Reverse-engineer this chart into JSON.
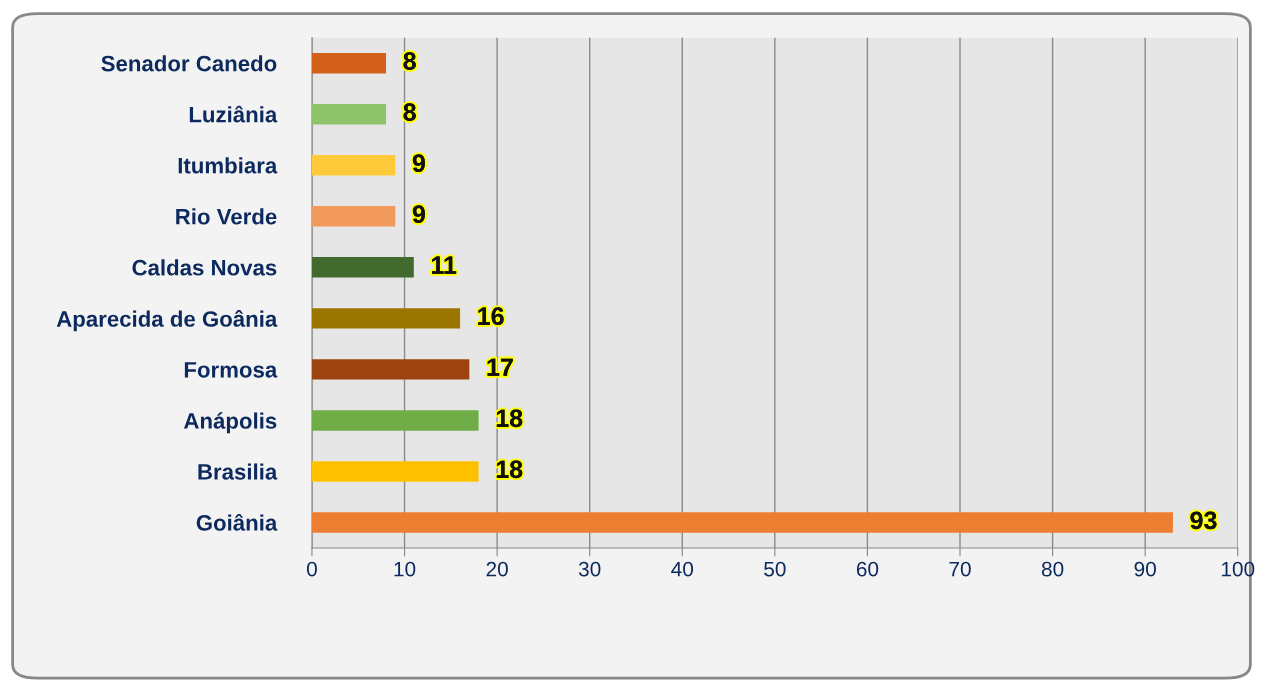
{
  "chart_data": {
    "type": "bar",
    "orientation": "horizontal",
    "categories": [
      "Senador Canedo",
      "Luziânia",
      "Itumbiara",
      "Rio Verde",
      "Caldas Novas",
      "Aparecida de Goânia",
      "Formosa",
      "Anápolis",
      "Brasilia",
      "Goiânia"
    ],
    "values": [
      8,
      8,
      9,
      9,
      11,
      16,
      17,
      18,
      18,
      93
    ],
    "colors": [
      "#d2601a",
      "#8fc36a",
      "#ffca3a",
      "#f29a5e",
      "#436a2e",
      "#9a7600",
      "#9c430f",
      "#70ad47",
      "#ffc000",
      "#ed7d31"
    ],
    "xlim": [
      0,
      100
    ],
    "xticks": [
      0,
      10,
      20,
      30,
      40,
      50,
      60,
      70,
      80,
      90,
      100
    ],
    "grid": "x",
    "data_labels": true
  }
}
